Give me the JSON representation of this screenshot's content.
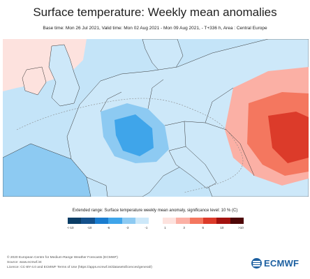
{
  "header": {
    "title": "Surface temperature: Weekly mean anomalies",
    "subtitle": "Base time: Mon 26 Jul 2021, Valid time: Mon 02 Aug 2021 - Mon 09 Aug 2021, - T+336 h, Area : Central Europe"
  },
  "map": {
    "region": "Central Europe",
    "colors": {
      "sea": "#c4e4f8",
      "land_neutral": "#ffffff",
      "border": "#333333",
      "contour": "#888888"
    }
  },
  "legend": {
    "title": "Extended range: Surface temperature weekly mean anomaly, significance level: 10 % (C)",
    "colors": [
      "#0a3d66",
      "#14518c",
      "#1a7ccf",
      "#3fa5ea",
      "#8dcaf2",
      "#cde8f9",
      "#ffffff",
      "#fde2de",
      "#fbb0a5",
      "#f4775f",
      "#dc3b2a",
      "#a3120f",
      "#4e0707"
    ],
    "ticks": [
      "<-10",
      "-10",
      "-6",
      "-3",
      "-1",
      "1",
      "3",
      "6",
      "10",
      ">10"
    ]
  },
  "footer": {
    "copyright": "© 2020 European Centre for Medium-Range Weather Forecasts (ECMWF)",
    "source": "Source: www.ecmwf.int",
    "licence": "Licence: CC-BY-4.0 and ECMWF Terms of Use (https://apps.ecmwf.int/datasets/licences/general/)"
  },
  "logo": {
    "text": "ECMWF",
    "icon": "ecmwf-logo-icon"
  }
}
